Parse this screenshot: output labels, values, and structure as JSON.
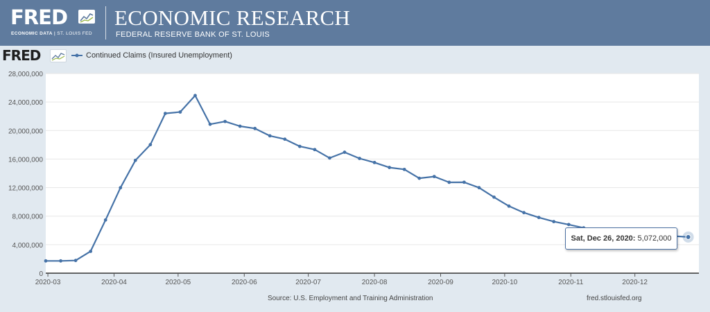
{
  "banner": {
    "logo_text": "FRED",
    "logo_icon": "line-chart-icon",
    "logo_sub_left": "ECONOMIC DATA",
    "logo_sub_sep": "|",
    "logo_sub_right": "ST. LOUIS FED",
    "title": "ECONOMIC RESEARCH",
    "subtitle": "FEDERAL RESERVE BANK OF ST. LOUIS",
    "bg_color": "#5f7b9e"
  },
  "chart_logo": {
    "text": "FRED",
    "icon": "line-chart-icon"
  },
  "tooltip": {
    "date": "Sat, Dec 26, 2020:",
    "value": "5,072,000"
  },
  "source": "Source: U.S. Employment and Training Administration",
  "footer_url": "fred.stlouisfed.org",
  "chart_data": {
    "type": "line",
    "title": "",
    "xlabel": "",
    "ylabel": "",
    "legend_position": "top-left",
    "grid": true,
    "series": [
      {
        "name": "Continued Claims (Insured Unemployment)",
        "color": "#4572a7",
        "x": [
          "2020-02-29",
          "2020-03-07",
          "2020-03-14",
          "2020-03-21",
          "2020-03-28",
          "2020-04-04",
          "2020-04-11",
          "2020-04-18",
          "2020-04-25",
          "2020-05-02",
          "2020-05-09",
          "2020-05-16",
          "2020-05-23",
          "2020-05-30",
          "2020-06-06",
          "2020-06-13",
          "2020-06-20",
          "2020-06-27",
          "2020-07-04",
          "2020-07-11",
          "2020-07-18",
          "2020-07-25",
          "2020-08-01",
          "2020-08-08",
          "2020-08-15",
          "2020-08-22",
          "2020-08-29",
          "2020-09-05",
          "2020-09-12",
          "2020-09-19",
          "2020-09-26",
          "2020-10-03",
          "2020-10-10",
          "2020-10-17",
          "2020-10-24",
          "2020-10-31",
          "2020-11-07",
          "2020-11-14",
          "2020-11-21",
          "2020-11-28",
          "2020-12-05",
          "2020-12-12",
          "2020-12-19",
          "2020-12-26"
        ],
        "values": [
          1720000,
          1720000,
          1780000,
          3060000,
          7460000,
          11980000,
          15820000,
          18020000,
          22400000,
          22600000,
          24910000,
          20880000,
          21270000,
          20610000,
          20290000,
          19260000,
          18790000,
          17780000,
          17330000,
          16150000,
          16960000,
          16090000,
          15520000,
          14820000,
          14550000,
          13310000,
          13550000,
          12740000,
          12750000,
          11990000,
          10660000,
          9400000,
          8490000,
          7810000,
          7230000,
          6820000,
          6350000,
          6100000,
          5820000,
          5630000,
          5450000,
          5310000,
          5200000,
          5072000
        ]
      }
    ],
    "xaxis": {
      "ticks": [
        "2020-03",
        "2020-04",
        "2020-05",
        "2020-06",
        "2020-07",
        "2020-08",
        "2020-09",
        "2020-10",
        "2020-11",
        "2020-12"
      ],
      "range": [
        "2020-02-29",
        "2020-12-31"
      ]
    },
    "yaxis": {
      "ticks": [
        0,
        4000000,
        8000000,
        12000000,
        16000000,
        20000000,
        24000000,
        28000000
      ],
      "tick_labels": [
        "0",
        "4,000,000",
        "8,000,000",
        "12,000,000",
        "16,000,000",
        "20,000,000",
        "24,000,000",
        "28,000,000"
      ],
      "range": [
        0,
        28000000
      ]
    },
    "highlight_point": {
      "x": "2020-12-26",
      "value": 5072000
    }
  }
}
